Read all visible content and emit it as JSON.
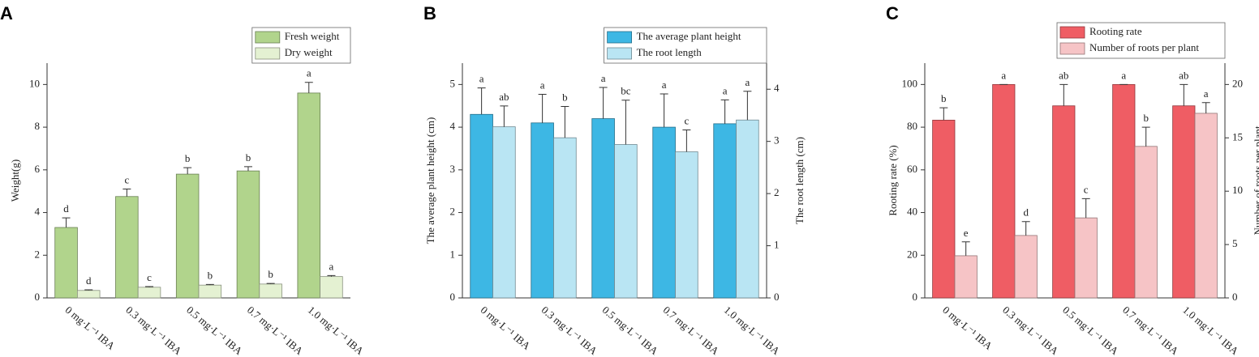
{
  "chart_data": [
    {
      "type": "bar",
      "panel_label": "A",
      "ylabel": "Weight(g)",
      "categories": [
        "0 mg·L⁻¹ IBA",
        "0.3 mg·L⁻¹ IBA",
        "0.5 mg·L⁻¹ IBA",
        "0.7 mg·L⁻¹ IBA",
        "1.0 mg·L⁻¹ IBA"
      ],
      "ylim": [
        0,
        11
      ],
      "yticks": [
        0,
        2,
        4,
        6,
        8,
        10
      ],
      "legend": "upper right",
      "series": [
        {
          "name": "Fresh weight",
          "color": "#b1d48c",
          "values": [
            3.3,
            4.75,
            5.8,
            5.95,
            9.6
          ],
          "errors": [
            0.45,
            0.35,
            0.3,
            0.2,
            0.5
          ],
          "labels": [
            "d",
            "c",
            "b",
            "b",
            "a"
          ]
        },
        {
          "name": "Dry weight",
          "color": "#e4f1d2",
          "values": [
            0.35,
            0.5,
            0.6,
            0.65,
            1.0
          ],
          "errors": [
            0.03,
            0.03,
            0.03,
            0.03,
            0.05
          ],
          "labels": [
            "d",
            "c",
            "b",
            "b",
            "a"
          ]
        }
      ]
    },
    {
      "type": "bar",
      "panel_label": "B",
      "ylabel": "The average plant height (cm)",
      "y2label": "The root length (cm)",
      "categories": [
        "0 mg·L⁻¹ IBA",
        "0.3 mg·L⁻¹ IBA",
        "0.5 mg·L⁻¹ IBA",
        "0.7 mg·L⁻¹ IBA",
        "1.0 mg·L⁻¹ IBA"
      ],
      "ylim": [
        0,
        5.5
      ],
      "yticks": [
        0,
        1,
        2,
        3,
        4,
        5
      ],
      "y2lim": [
        0,
        4.5
      ],
      "y2ticks": [
        0,
        1,
        2,
        3,
        4
      ],
      "legend": "upper right",
      "series": [
        {
          "name": "The average plant height",
          "color": "#3db7e4",
          "values": [
            4.3,
            4.1,
            4.2,
            4.0,
            4.08
          ],
          "errors": [
            0.62,
            0.67,
            0.73,
            0.78,
            0.56
          ],
          "labels": [
            "a",
            "a",
            "a",
            "a",
            "a"
          ]
        },
        {
          "name": "The root length",
          "color": "#b9e5f3",
          "axis": "y2",
          "values": [
            3.28,
            3.07,
            2.94,
            2.8,
            3.41
          ],
          "errors": [
            0.4,
            0.6,
            0.85,
            0.42,
            0.55
          ],
          "labels": [
            "ab",
            "b",
            "bc",
            "c",
            "a"
          ]
        }
      ]
    },
    {
      "type": "bar",
      "panel_label": "C",
      "ylabel": "Rooting rate (%)",
      "y2label": "Number of roots per plant",
      "categories": [
        "0 mg·L⁻¹ IBA",
        "0.3 mg·L⁻¹ IBA",
        "0.5 mg·L⁻¹ IBA",
        "0.7 mg·L⁻¹ IBA",
        "1.0 mg·L⁻¹ IBA"
      ],
      "ylim": [
        0,
        110
      ],
      "yticks": [
        0,
        20,
        40,
        60,
        80,
        100
      ],
      "y2lim": [
        0,
        22
      ],
      "y2ticks": [
        0,
        5,
        10,
        15,
        20
      ],
      "legend": "upper right",
      "series": [
        {
          "name": "Rooting rate",
          "color": "#ef5d64",
          "values": [
            83.3,
            100,
            90,
            100,
            90
          ],
          "errors": [
            5.8,
            0,
            10,
            0,
            10
          ],
          "labels": [
            "b",
            "a",
            "ab",
            "a",
            "ab"
          ]
        },
        {
          "name": "Number of roots per plant",
          "color": "#f6c4c6",
          "axis": "y2",
          "values": [
            3.95,
            5.85,
            7.5,
            14.2,
            17.3
          ],
          "errors": [
            1.3,
            1.3,
            1.8,
            1.8,
            1.0
          ],
          "labels": [
            "e",
            "d",
            "c",
            "b",
            "a"
          ]
        }
      ]
    }
  ]
}
